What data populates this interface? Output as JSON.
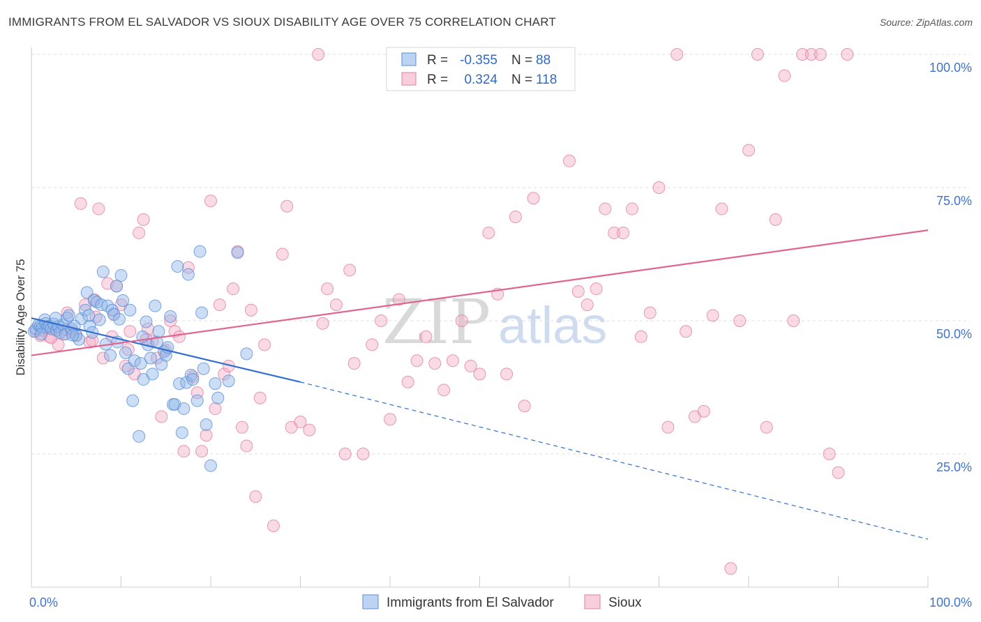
{
  "title": "IMMIGRANTS FROM EL SALVADOR VS SIOUX DISABILITY AGE OVER 75 CORRELATION CHART",
  "source": "Source: ZipAtlas.com",
  "watermark": {
    "zip": "ZIP",
    "atlas": "atlas"
  },
  "chart_data": {
    "type": "scatter",
    "ylabel": "Disability Age Over 75",
    "xlim": [
      0,
      100
    ],
    "ylim": [
      0,
      100
    ],
    "x_ticks": [
      "0.0%",
      "100.0%"
    ],
    "y_ticks": [
      {
        "value": 25,
        "label": "25.0%"
      },
      {
        "value": 50,
        "label": "50.0%"
      },
      {
        "value": 75,
        "label": "75.0%"
      },
      {
        "value": 100,
        "label": "100.0%"
      }
    ],
    "grid": true,
    "legend_position": "top-center",
    "series": [
      {
        "name": "Immigrants from El Salvador",
        "color": "#8fb5e8",
        "edge": "#5b8fd6",
        "stats": {
          "r_label": "R =",
          "r": "-0.355",
          "n_label": "N =",
          "n": "88"
        },
        "trend": {
          "x0": 0,
          "y0": 50.5,
          "x1": 30,
          "y1": 38.5,
          "dash_to_x": 100,
          "dash_to_y": 9,
          "color": "#2f6fcf"
        },
        "points": [
          [
            0.3,
            48
          ],
          [
            0.5,
            48.5
          ],
          [
            0.8,
            49.2
          ],
          [
            1,
            49
          ],
          [
            1.2,
            48.7
          ],
          [
            1.5,
            50.2
          ],
          [
            1.6,
            49.5
          ],
          [
            1.8,
            48.8
          ],
          [
            2,
            49
          ],
          [
            2.2,
            48.5
          ],
          [
            2.5,
            49.4
          ],
          [
            2.8,
            48.2
          ],
          [
            3,
            48.9
          ],
          [
            3.2,
            47.8
          ],
          [
            3.5,
            49.3
          ],
          [
            3.8,
            47.5
          ],
          [
            4,
            50.5
          ],
          [
            4.2,
            51
          ],
          [
            4.5,
            48.5
          ],
          [
            4.8,
            49
          ],
          [
            5,
            47.2
          ],
          [
            5.3,
            46.5
          ],
          [
            5.6,
            50.4
          ],
          [
            6,
            52
          ],
          [
            6.2,
            55.3
          ],
          [
            6.5,
            49
          ],
          [
            6.8,
            47.8
          ],
          [
            7,
            53.8
          ],
          [
            7.3,
            53.5
          ],
          [
            7.6,
            50.2
          ],
          [
            7.8,
            53
          ],
          [
            8,
            59.2
          ],
          [
            8.3,
            45.6
          ],
          [
            8.5,
            52.8
          ],
          [
            8.8,
            43.5
          ],
          [
            9,
            52
          ],
          [
            9.2,
            51.2
          ],
          [
            9.5,
            56.5
          ],
          [
            9.8,
            50.3
          ],
          [
            10,
            58.5
          ],
          [
            10.2,
            53.8
          ],
          [
            10.5,
            44
          ],
          [
            10.8,
            41
          ],
          [
            11,
            52
          ],
          [
            11.3,
            35
          ],
          [
            11.5,
            42.5
          ],
          [
            12,
            28.3
          ],
          [
            12.2,
            42
          ],
          [
            12.5,
            39
          ],
          [
            12.8,
            49.8
          ],
          [
            13,
            45.5
          ],
          [
            13.3,
            43
          ],
          [
            13.5,
            40
          ],
          [
            13.8,
            52.8
          ],
          [
            14,
            46
          ],
          [
            14.2,
            48
          ],
          [
            14.5,
            41.8
          ],
          [
            14.8,
            44.2
          ],
          [
            15,
            43.5
          ],
          [
            15.5,
            50.8
          ],
          [
            15.8,
            34.3
          ],
          [
            16,
            34.3
          ],
          [
            16.3,
            60.2
          ],
          [
            16.5,
            38.2
          ],
          [
            16.8,
            29
          ],
          [
            17,
            33.5
          ],
          [
            17.3,
            38.4
          ],
          [
            17.5,
            58.7
          ],
          [
            17.8,
            39.8
          ],
          [
            18,
            39
          ],
          [
            18.5,
            35
          ],
          [
            18.8,
            63
          ],
          [
            19,
            51.5
          ],
          [
            19.2,
            41
          ],
          [
            19.5,
            30.5
          ],
          [
            20,
            22.8
          ],
          [
            20.5,
            38.2
          ],
          [
            20.8,
            35.5
          ],
          [
            22,
            38.7
          ],
          [
            23,
            62.8
          ],
          [
            24,
            43.8
          ],
          [
            1.1,
            47.5
          ],
          [
            2.7,
            50.5
          ],
          [
            4.6,
            47.3
          ],
          [
            6.4,
            51
          ],
          [
            9.6,
            46
          ],
          [
            12.4,
            47
          ],
          [
            15.2,
            45
          ]
        ]
      },
      {
        "name": "Sioux",
        "color": "#f4aec6",
        "edge": "#e07fa3",
        "stats": {
          "r_label": "R =",
          "r": "0.324",
          "n_label": "N =",
          "n": "118"
        },
        "trend": {
          "x0": 0,
          "y0": 43.5,
          "x1": 100,
          "y1": 67,
          "color": "#e0648f"
        },
        "points": [
          [
            0.5,
            48
          ],
          [
            1,
            47.2
          ],
          [
            1.5,
            48.8
          ],
          [
            2,
            47
          ],
          [
            2.5,
            48.5
          ],
          [
            3,
            45.5
          ],
          [
            3.5,
            47.5
          ],
          [
            4,
            51.5
          ],
          [
            4.5,
            48
          ],
          [
            5,
            47.3
          ],
          [
            5.5,
            72
          ],
          [
            6,
            53
          ],
          [
            6.5,
            46
          ],
          [
            7,
            54
          ],
          [
            7.5,
            71
          ],
          [
            8,
            43
          ],
          [
            8.5,
            57
          ],
          [
            9,
            47
          ],
          [
            9.5,
            56.5
          ],
          [
            10,
            53
          ],
          [
            10.5,
            41.5
          ],
          [
            11,
            48
          ],
          [
            11.5,
            40
          ],
          [
            12,
            66.5
          ],
          [
            12.5,
            69
          ],
          [
            13,
            48.5
          ],
          [
            13.5,
            46.2
          ],
          [
            14,
            43
          ],
          [
            14.5,
            32
          ],
          [
            15,
            44.5
          ],
          [
            15.5,
            50
          ],
          [
            16,
            48
          ],
          [
            16.5,
            47
          ],
          [
            17,
            25.5
          ],
          [
            17.5,
            60
          ],
          [
            18,
            39.5
          ],
          [
            18.5,
            36.5
          ],
          [
            19,
            25.5
          ],
          [
            19.5,
            28.5
          ],
          [
            20,
            72.5
          ],
          [
            20.5,
            33.5
          ],
          [
            21,
            53
          ],
          [
            21.5,
            40
          ],
          [
            22,
            41.5
          ],
          [
            22.5,
            56
          ],
          [
            23,
            63
          ],
          [
            23.5,
            30
          ],
          [
            24,
            26.5
          ],
          [
            24.5,
            52
          ],
          [
            25,
            17
          ],
          [
            25.5,
            35.5
          ],
          [
            26,
            45.5
          ],
          [
            27,
            11.5
          ],
          [
            28,
            62.5
          ],
          [
            28.5,
            71.5
          ],
          [
            29,
            30
          ],
          [
            30,
            31
          ],
          [
            31,
            29.5
          ],
          [
            32,
            100
          ],
          [
            32.5,
            49.5
          ],
          [
            33,
            56
          ],
          [
            34,
            53
          ],
          [
            35,
            25
          ],
          [
            35.5,
            59.5
          ],
          [
            36,
            42
          ],
          [
            37,
            25
          ],
          [
            38,
            45.5
          ],
          [
            39,
            50
          ],
          [
            40,
            31.5
          ],
          [
            41,
            54
          ],
          [
            42,
            38.5
          ],
          [
            43,
            42.5
          ],
          [
            44,
            47
          ],
          [
            45,
            42
          ],
          [
            46,
            37
          ],
          [
            47,
            42.5
          ],
          [
            48,
            50
          ],
          [
            49,
            41.5
          ],
          [
            50,
            40
          ],
          [
            51,
            66.5
          ],
          [
            52,
            55
          ],
          [
            53,
            40
          ],
          [
            54,
            69.5
          ],
          [
            55,
            34
          ],
          [
            56,
            73
          ],
          [
            57,
            100
          ],
          [
            58,
            100
          ],
          [
            59,
            100
          ],
          [
            60,
            80
          ],
          [
            61,
            55.5
          ],
          [
            62,
            53
          ],
          [
            63,
            56
          ],
          [
            64,
            71
          ],
          [
            65,
            66.5
          ],
          [
            66,
            66.5
          ],
          [
            67,
            71
          ],
          [
            68,
            47
          ],
          [
            69,
            51.5
          ],
          [
            70,
            75
          ],
          [
            71,
            30
          ],
          [
            72,
            100
          ],
          [
            73,
            48
          ],
          [
            74,
            32
          ],
          [
            75,
            33
          ],
          [
            76,
            51
          ],
          [
            77,
            71
          ],
          [
            78,
            3.5
          ],
          [
            79,
            50
          ],
          [
            80,
            82
          ],
          [
            81,
            100
          ],
          [
            82,
            30
          ],
          [
            83,
            69
          ],
          [
            84,
            96
          ],
          [
            85,
            50
          ],
          [
            86,
            100
          ],
          [
            87,
            100
          ],
          [
            88,
            100
          ],
          [
            89,
            25
          ],
          [
            90,
            21.5
          ],
          [
            91,
            100
          ],
          [
            1.3,
            48.2
          ],
          [
            2.2,
            46.8
          ],
          [
            3.8,
            48.3
          ],
          [
            6.8,
            46.3
          ],
          [
            7.2,
            50.7
          ],
          [
            9.2,
            51.2
          ],
          [
            10.8,
            44.6
          ],
          [
            12.8,
            46.5
          ]
        ]
      }
    ]
  }
}
